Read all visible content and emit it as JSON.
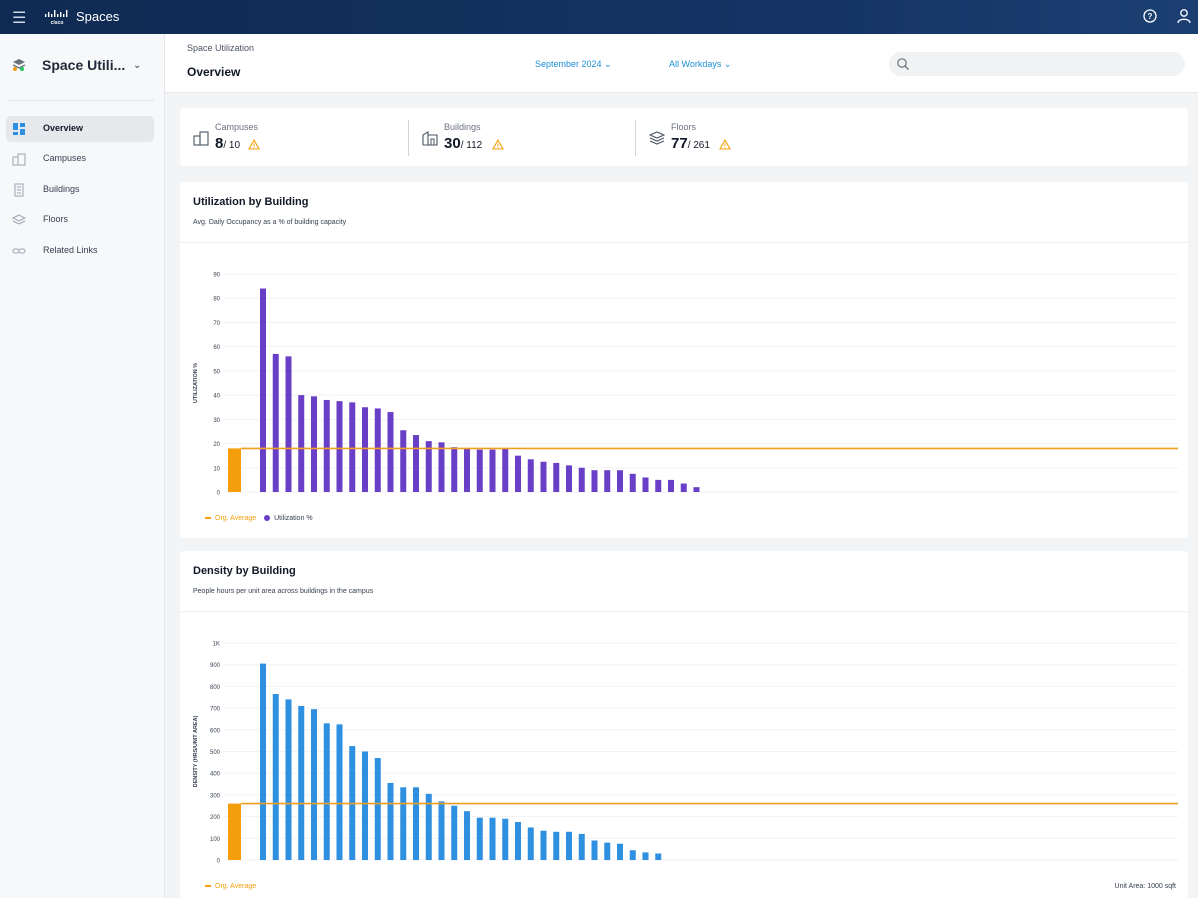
{
  "topbar": {
    "menu_icon": "hamburger-icon",
    "brand_logo": "cisco",
    "brand_name": "Spaces",
    "help_icon": "help-circle-icon",
    "user_icon": "user-icon"
  },
  "sidebar": {
    "app_title": "Space Utili...",
    "items": [
      {
        "label": "Overview",
        "icon": "dashboard-icon",
        "active": true
      },
      {
        "label": "Campuses",
        "icon": "campus-icon",
        "active": false
      },
      {
        "label": "Buildings",
        "icon": "building-icon",
        "active": false
      },
      {
        "label": "Floors",
        "icon": "layers-icon",
        "active": false
      },
      {
        "label": "Related Links",
        "icon": "link-icon",
        "active": false
      }
    ]
  },
  "header": {
    "breadcrumb": "Space Utilization",
    "title": "Overview",
    "month": "September 2024",
    "workdays": "All Workdays",
    "search_placeholder": ""
  },
  "stats": [
    {
      "label": "Campuses",
      "value": "8",
      "total": "/ 10",
      "icon": "campus-icon",
      "warning": true
    },
    {
      "label": "Buildings",
      "value": "30",
      "total": "/ 112",
      "icon": "building-icon",
      "warning": true
    },
    {
      "label": "Floors",
      "value": "77",
      "total": "/ 261",
      "icon": "layers-icon",
      "warning": true
    }
  ],
  "colors": {
    "utilization_bar": "#6a3fc8",
    "density_bar": "#2f8fe0",
    "org_average": "#f59e0b",
    "accent_link": "#1d8fd6"
  },
  "utilization_card": {
    "title": "Utilization by Building",
    "subtitle": "Avg. Daily Occupancy as a % of building capacity",
    "legend_org": "Org. Average",
    "legend_series": "Utilization %"
  },
  "density_card": {
    "title": "Density by Building",
    "subtitle": "People hours per unit area across buildings in the campus",
    "legend_org": "Org. Average",
    "unit_area": "Unit Area: 1000 sqft"
  },
  "chart_data": [
    {
      "type": "bar",
      "title": "Utilization by Building",
      "subtitle": "Avg. Daily Occupancy as a % of building capacity",
      "ylabel": "UTILIZATION %",
      "ylim": [
        0,
        90
      ],
      "yticks": [
        0,
        10,
        20,
        30,
        40,
        50,
        60,
        70,
        80,
        90
      ],
      "grid": true,
      "org_average": 18,
      "series": [
        {
          "name": "Utilization %",
          "values": [
            84,
            57,
            56,
            40,
            39.5,
            38,
            37.5,
            37,
            35,
            34.5,
            33,
            25.5,
            23.5,
            21,
            20.5,
            18.5,
            18,
            17.5,
            17.5,
            18,
            15,
            13.5,
            12.5,
            12,
            11,
            10,
            9,
            9,
            9,
            7.5,
            6,
            5,
            5,
            3.5,
            2
          ]
        }
      ],
      "legend": [
        "Org. Average",
        "Utilization %"
      ],
      "legend_position": "bottom-left"
    },
    {
      "type": "bar",
      "title": "Density by Building",
      "subtitle": "People hours per unit area across buildings in the campus",
      "ylabel": "DENSITY (HRS/UNIT AREA)",
      "ylim": [
        0,
        1000
      ],
      "yticks": [
        0,
        100,
        200,
        300,
        400,
        500,
        600,
        700,
        800,
        900,
        1000
      ],
      "ytick_labels": [
        "0",
        "100",
        "200",
        "300",
        "400",
        "500",
        "600",
        "700",
        "800",
        "900",
        "1K"
      ],
      "grid": true,
      "org_average": 260,
      "series": [
        {
          "name": "Density",
          "values": [
            905,
            765,
            740,
            710,
            695,
            630,
            625,
            525,
            500,
            470,
            355,
            335,
            335,
            305,
            270,
            250,
            225,
            195,
            195,
            190,
            175,
            150,
            135,
            130,
            130,
            120,
            90,
            80,
            75,
            45,
            35,
            30
          ]
        }
      ],
      "legend": [
        "Org. Average"
      ],
      "legend_position": "bottom-left",
      "note": "Unit Area: 1000 sqft"
    }
  ]
}
